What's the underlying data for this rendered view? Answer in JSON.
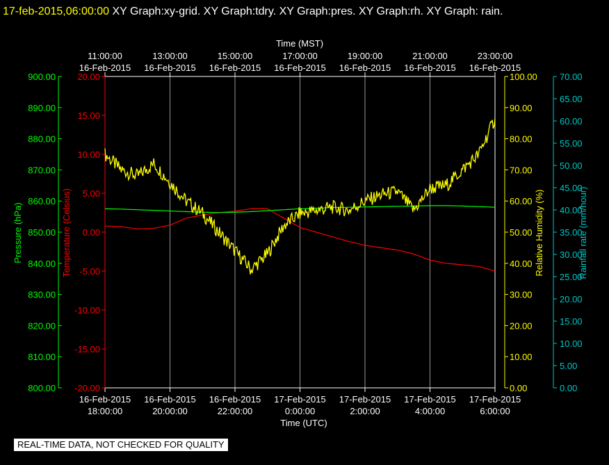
{
  "header": {
    "timestamp": "17-feb-2015,06:00:00",
    "graphs_text": "XY Graph:xy-grid.  XY Graph:tdry.  XY Graph:pres.  XY Graph:rh.  XY Graph: rain."
  },
  "footer": {
    "quality_notice": "REAL-TIME DATA, NOT CHECKED FOR QUALITY"
  },
  "colors": {
    "background": "#000000",
    "grid": "#ffffff",
    "temperature": "#ff0000",
    "pressure": "#00ff00",
    "humidity": "#ffff00",
    "rain": "#00c8c8",
    "title_timestamp": "#ffff00"
  },
  "chart_data": {
    "type": "line",
    "grid": true,
    "x_axis_top": {
      "label": "Time (MST)",
      "ticks": [
        [
          "11:00:00",
          "16-Feb-2015"
        ],
        [
          "13:00:00",
          "16-Feb-2015"
        ],
        [
          "15:00:00",
          "16-Feb-2015"
        ],
        [
          "17:00:00",
          "16-Feb-2015"
        ],
        [
          "19:00:00",
          "16-Feb-2015"
        ],
        [
          "21:00:00",
          "16-Feb-2015"
        ],
        [
          "23:00:00",
          "16-Feb-2015"
        ]
      ]
    },
    "x_axis_bottom": {
      "label": "Time (UTC)",
      "xlim": [
        "16-Feb-2015 18:00:00",
        "17-Feb-2015 06:00:00"
      ],
      "ticks": [
        [
          "16-Feb-2015",
          "18:00:00"
        ],
        [
          "16-Feb-2015",
          "20:00:00"
        ],
        [
          "16-Feb-2015",
          "22:00:00"
        ],
        [
          "17-Feb-2015",
          "0:00:00"
        ],
        [
          "17-Feb-2015",
          "2:00:00"
        ],
        [
          "17-Feb-2015",
          "4:00:00"
        ],
        [
          "17-Feb-2015",
          "6:00:00"
        ]
      ]
    },
    "x_hours_utc": [
      18.0,
      18.5,
      19.0,
      19.5,
      20.0,
      20.5,
      21.0,
      21.5,
      22.0,
      22.5,
      23.0,
      23.5,
      24.0,
      24.5,
      25.0,
      25.5,
      26.0,
      26.5,
      27.0,
      27.5,
      28.0,
      28.5,
      29.0,
      29.5,
      30.0
    ],
    "axes": {
      "pressure": {
        "label": "Pressure (hPa)",
        "ylim": [
          800,
          900
        ],
        "ticks": [
          "800.00",
          "810.00",
          "820.00",
          "830.00",
          "840.00",
          "850.00",
          "860.00",
          "870.00",
          "880.00",
          "890.00",
          "900.00"
        ]
      },
      "temperature": {
        "label": "Temperature (Celsius)",
        "ylim": [
          -20,
          20
        ],
        "ticks": [
          "-20.00",
          "-15.00",
          "-10.00",
          "-5.00",
          "0.00",
          "5.00",
          "10.00",
          "15.00",
          "20.00"
        ]
      },
      "humidity": {
        "label": "Relative Humidity (%)",
        "ylim": [
          0,
          100
        ],
        "ticks": [
          "0.00",
          "10.00",
          "20.00",
          "30.00",
          "40.00",
          "50.00",
          "60.00",
          "70.00",
          "80.00",
          "90.00",
          "100.00"
        ]
      },
      "rain": {
        "label": "Rainfall rate (mm/hour)",
        "ylim": [
          0,
          70
        ],
        "ticks": [
          "0.00",
          "5.00",
          "10.00",
          "15.00",
          "20.00",
          "25.00",
          "30.00",
          "35.00",
          "40.00",
          "45.00",
          "50.00",
          "55.00",
          "60.00",
          "65.00",
          "70.00"
        ]
      }
    },
    "series": [
      {
        "axis": "temperature",
        "color": "#ff0000",
        "values": [
          0.8,
          0.7,
          0.4,
          0.5,
          0.9,
          1.8,
          2.2,
          2.5,
          2.7,
          3.0,
          3.0,
          1.8,
          0.6,
          0.0,
          -0.6,
          -1.2,
          -1.7,
          -2.0,
          -2.3,
          -2.8,
          -3.6,
          -4.0,
          -4.2,
          -4.4,
          -5.0
        ]
      },
      {
        "axis": "pressure",
        "color": "#00ff00",
        "values": [
          857.5,
          857.4,
          857.2,
          857.0,
          856.8,
          856.6,
          856.4,
          856.3,
          856.4,
          856.6,
          856.9,
          857.2,
          857.5,
          857.7,
          857.9,
          858.0,
          858.1,
          858.2,
          858.3,
          858.4,
          858.5,
          858.5,
          858.4,
          858.2,
          858.0
        ]
      },
      {
        "axis": "humidity",
        "color": "#ffff00",
        "values": [
          75.0,
          70.0,
          68.0,
          72.0,
          66.0,
          60.0,
          56.0,
          50.0,
          44.0,
          38.0,
          43.0,
          52.0,
          56.0,
          57.0,
          58.0,
          57.0,
          60.0,
          62.0,
          63.0,
          57.0,
          64.0,
          65.0,
          70.0,
          75.0,
          86.5
        ]
      },
      {
        "axis": "rain",
        "color": "#00c8c8",
        "values": []
      }
    ]
  }
}
